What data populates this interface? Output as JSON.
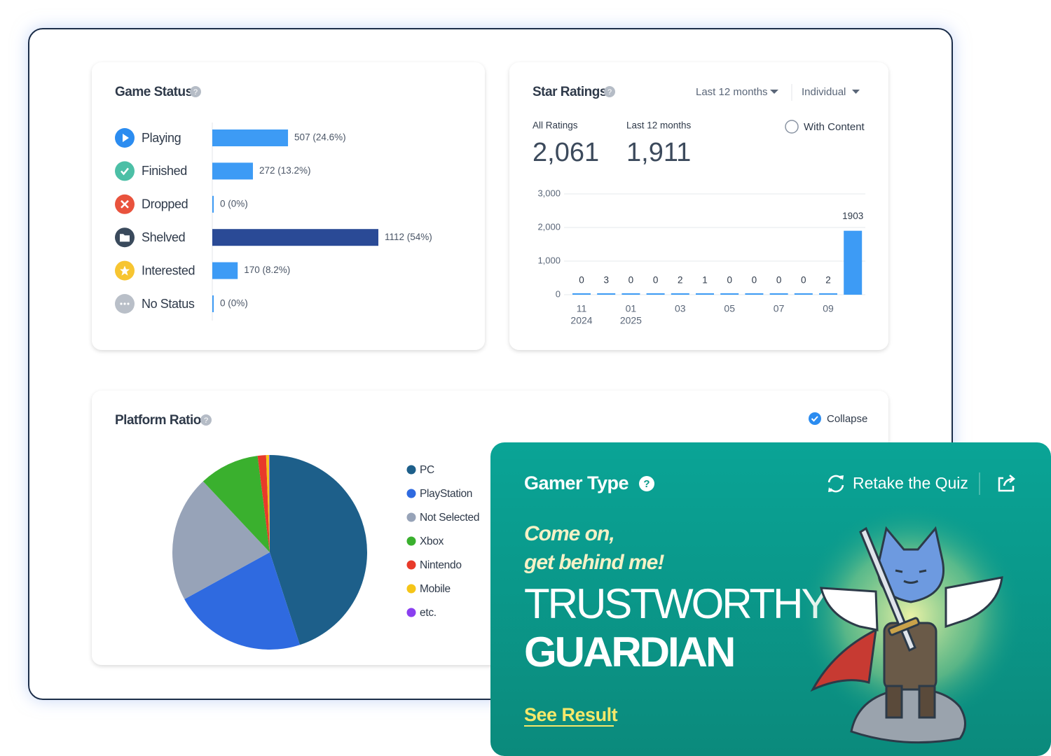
{
  "game_status": {
    "type": "bar",
    "title": "Game Status",
    "categories": [
      "Playing",
      "Finished",
      "Dropped",
      "Shelved",
      "Interested",
      "No Status"
    ],
    "values": [
      507,
      272,
      0,
      1112,
      170,
      0
    ],
    "value_labels": [
      "507 (24.6%)",
      "272 (13.2%)",
      "0 (0%)",
      "1112 (54%)",
      "170 (8.2%)",
      "0 (0%)"
    ],
    "colors": [
      "#3d9bf5",
      "#3d9bf5",
      "#3d9bf5",
      "#2a4a96",
      "#3d9bf5",
      "#3d9bf5"
    ]
  },
  "star_ratings": {
    "type": "bar",
    "title": "Star Ratings",
    "period_filter": "Last 12 months",
    "mode_filter": "Individual",
    "stats": [
      {
        "label": "All Ratings",
        "value": "2,061"
      },
      {
        "label": "Last 12 months",
        "value": "1,911"
      }
    ],
    "with_content": "With Content",
    "categories": [
      "11",
      null,
      "01",
      null,
      "03",
      null,
      "05",
      null,
      "07",
      null,
      "09",
      null
    ],
    "years": [
      "2024",
      null,
      "2025",
      null,
      null,
      null,
      null,
      null,
      null,
      null,
      null,
      null
    ],
    "values": [
      0,
      3,
      0,
      0,
      2,
      1,
      0,
      0,
      0,
      0,
      2,
      1903
    ],
    "color": "#3d9bf5",
    "ylim": [
      0,
      3000
    ],
    "yticks": [
      0,
      {
        "value": 1000,
        "label": "1,000"
      },
      {
        "value": 2000,
        "label": "2,000"
      },
      {
        "value": 3000,
        "label": "3,000"
      }
    ],
    "grid": true
  },
  "platform_ratio": {
    "type": "pie",
    "title": "Platform Ratio",
    "collapse": "Collapse",
    "categories": [
      "PC",
      "PlayStation",
      "Not Selected",
      "Xbox",
      "Nintendo",
      "Mobile",
      "etc."
    ],
    "values": [
      45,
      22,
      21,
      10,
      1.4,
      0.5,
      0.1
    ],
    "colors": [
      "#1d5f8a",
      "#2f6ae0",
      "#97a3b8",
      "#3ab02e",
      "#e83a2a",
      "#f5c518",
      "#8a3ff0"
    ]
  },
  "gamer_type": {
    "title": "Gamer Type",
    "retake": "Retake the Quiz",
    "quote": [
      "Come on,",
      "get behind me!"
    ],
    "type_line1": "TRUSTWORTHY",
    "type_line2": "GUARDIAN",
    "see_result": "See Result"
  }
}
